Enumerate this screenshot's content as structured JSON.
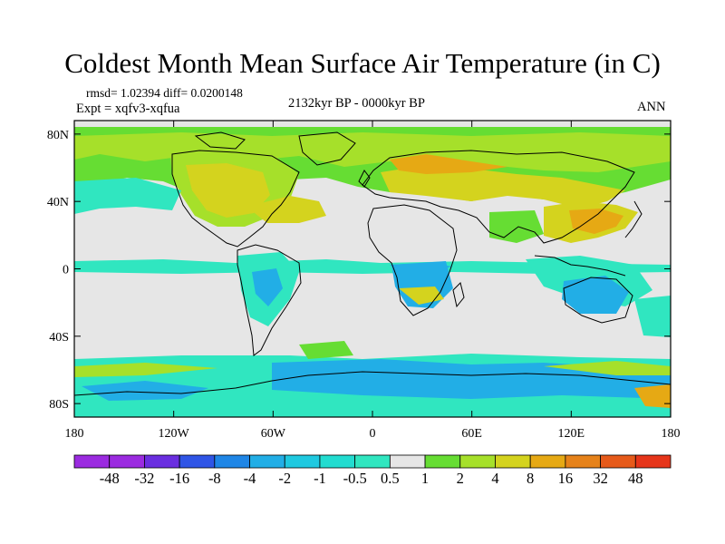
{
  "title": "Coldest Month Mean Surface Air Temperature (in C)",
  "stats": "rmsd= 1.02394 diff= 0.0200148",
  "experiment": "Expt = xqfv3-xqfua",
  "period": "2132kyr BP - 0000kyr BP",
  "season": "ANN",
  "axes": {
    "lat_ticks": [
      "80N",
      "40N",
      "0",
      "40S",
      "80S"
    ],
    "lat_values": [
      80,
      40,
      0,
      -40,
      -80
    ],
    "lon_ticks": [
      "180",
      "120W",
      "60W",
      "0",
      "60E",
      "120E",
      "180"
    ],
    "lon_values": [
      -180,
      -120,
      -60,
      0,
      60,
      120,
      180
    ]
  },
  "colorbar": {
    "labels": [
      "-48",
      "-32",
      "-16",
      "-8",
      "-4",
      "-2",
      "-1",
      "-0.5",
      "0.5",
      "1",
      "2",
      "4",
      "8",
      "16",
      "32",
      "48"
    ],
    "colors": [
      "#9b2be0",
      "#6a2ee0",
      "#2f55e6",
      "#1f86e6",
      "#22aee6",
      "#1fc9e0",
      "#22dcd0",
      "#30e6c0",
      "#e6e6e6",
      "#66dd33",
      "#a6e02a",
      "#d4d31e",
      "#e6a914",
      "#e6821a",
      "#e65a1a",
      "#e6351a"
    ]
  }
}
